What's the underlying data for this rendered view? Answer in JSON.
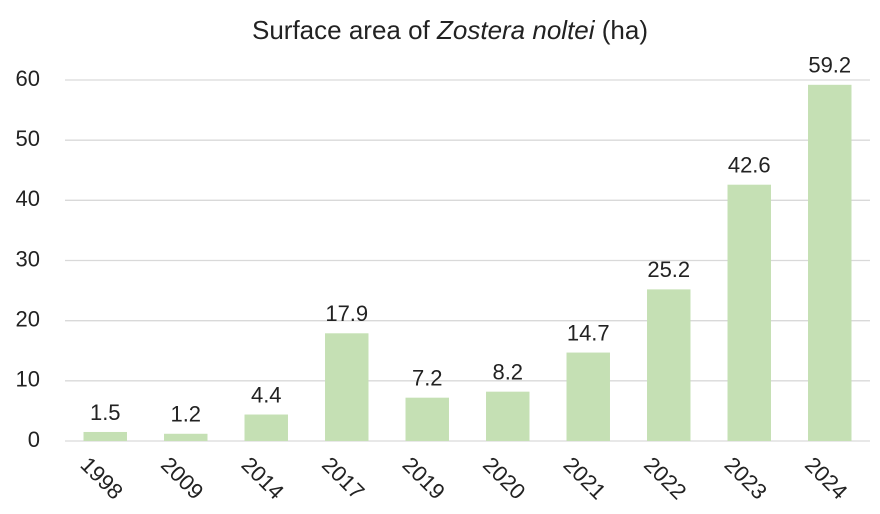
{
  "chart_data": {
    "type": "bar",
    "title": [
      {
        "text": "Surface area of ",
        "italic": false
      },
      {
        "text": "Zostera noltei",
        "italic": true
      },
      {
        "text": " (ha)",
        "italic": false
      }
    ],
    "categories": [
      "1998",
      "2009",
      "2014",
      "2017",
      "2019",
      "2020",
      "2021",
      "2022",
      "2023",
      "2024"
    ],
    "values": [
      1.5,
      1.2,
      4.4,
      17.9,
      7.2,
      8.2,
      14.7,
      25.2,
      42.6,
      59.2
    ],
    "color": "#c5e0b4",
    "ylim": [
      0,
      60
    ],
    "yticks": [
      0,
      10,
      20,
      30,
      40,
      50,
      60
    ],
    "grid": true
  }
}
